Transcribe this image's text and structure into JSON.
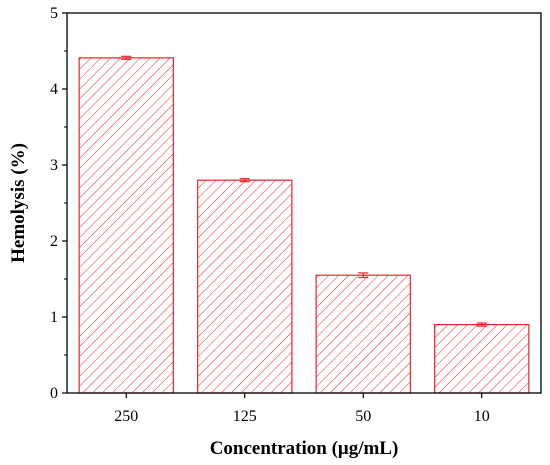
{
  "chart_data": {
    "type": "bar",
    "title": "",
    "xlabel": "Concentration (μg/mL)",
    "ylabel": "Hemolysis (%)",
    "categories": [
      "250",
      "125",
      "50",
      "10"
    ],
    "values": [
      4.41,
      2.8,
      1.55,
      0.9
    ],
    "errors": [
      0.02,
      0.02,
      0.03,
      0.02
    ],
    "ylim": [
      0,
      5
    ],
    "yticks": [
      "0",
      "1",
      "2",
      "3",
      "4",
      "5"
    ],
    "grid": false,
    "legend": "none",
    "bar_color": "#e8262b",
    "bar_pattern": "diagonal-hatch"
  }
}
